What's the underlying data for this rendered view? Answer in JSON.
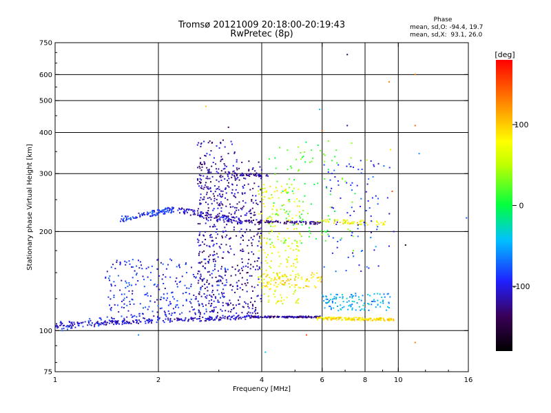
{
  "chart_data": {
    "type": "scatter",
    "title": "Tromsø 20121009 20:18:00-20:19:43",
    "subtitle": "RwPretec (8p)",
    "xlabel": "Frequency [MHz]",
    "ylabel": "Stationary phase Virtual Height [km]",
    "x_scale": "log",
    "y_scale": "log",
    "xlim": [
      1,
      16
    ],
    "ylim": [
      75,
      750
    ],
    "x_ticks": [
      1,
      2,
      4,
      6,
      8,
      10,
      16
    ],
    "x_tick_labels": [
      "1",
      "2",
      "4",
      "6",
      "8",
      "10",
      "16"
    ],
    "y_ticks": [
      75,
      100,
      200,
      300,
      400,
      500,
      600,
      750
    ],
    "y_tick_labels": [
      "75",
      "100",
      "200",
      "300",
      "400",
      "500",
      "600",
      "750"
    ],
    "grid": true,
    "colorbar": {
      "label": "[deg]",
      "range": [
        -180,
        180
      ],
      "ticks": [
        -100,
        0,
        100
      ],
      "tick_labels": [
        "-100",
        "0",
        "100"
      ]
    },
    "stats": {
      "heading": "Phase",
      "line_o": "mean, sd,O: -94.4, 19.7",
      "line_x": "mean, sd,X:  93.1, 26.0"
    },
    "traces": [
      {
        "kind": "line",
        "f0": 1.0,
        "f1": 3.7,
        "h0": 104,
        "h1": 110,
        "n": 230,
        "phase": -110,
        "spread": 0.015
      },
      {
        "kind": "line",
        "f0": 3.7,
        "f1": 6.0,
        "h0": 110,
        "h1": 110,
        "n": 120,
        "phase": -120,
        "spread": 0.006
      },
      {
        "kind": "line",
        "f0": 5.8,
        "f1": 9.7,
        "h0": 109,
        "h1": 108,
        "n": 160,
        "phase": 90,
        "spread": 0.01
      },
      {
        "kind": "line",
        "f0": 1.0,
        "f1": 2.2,
        "h0": 103,
        "h1": 112,
        "n": 90,
        "phase": -95,
        "spread": 0.03
      },
      {
        "kind": "line",
        "f0": 1.55,
        "f1": 2.3,
        "h0": 218,
        "h1": 235,
        "n": 110,
        "phase": -90,
        "spread": 0.02
      },
      {
        "kind": "line",
        "f0": 2.3,
        "f1": 3.5,
        "h0": 232,
        "h1": 215,
        "n": 110,
        "phase": -110,
        "spread": 0.02
      },
      {
        "kind": "line",
        "f0": 3.4,
        "f1": 6.0,
        "h0": 215,
        "h1": 212,
        "n": 90,
        "phase": -125,
        "spread": 0.01
      },
      {
        "kind": "line",
        "f0": 5.8,
        "f1": 9.2,
        "h0": 215,
        "h1": 212,
        "n": 60,
        "phase": 80,
        "spread": 0.015
      },
      {
        "kind": "line",
        "f0": 3.2,
        "f1": 4.2,
        "h0": 300,
        "h1": 295,
        "n": 40,
        "phase": -120,
        "spread": 0.01
      },
      {
        "kind": "cloud",
        "f0": 1.4,
        "f1": 3.2,
        "h0": 112,
        "h1": 165,
        "n": 260,
        "phase": -95
      },
      {
        "kind": "cloud",
        "f0": 2.6,
        "f1": 4.0,
        "h0": 110,
        "h1": 330,
        "n": 520,
        "phase": -120
      },
      {
        "kind": "cloud",
        "f0": 2.6,
        "f1": 3.4,
        "h0": 230,
        "h1": 380,
        "n": 120,
        "phase": -115
      },
      {
        "kind": "cloud",
        "f0": 3.9,
        "f1": 5.2,
        "h0": 120,
        "h1": 280,
        "n": 200,
        "phase": 70
      },
      {
        "kind": "cloud",
        "f0": 4.0,
        "f1": 6.0,
        "h0": 135,
        "h1": 150,
        "n": 80,
        "phase": 90
      },
      {
        "kind": "cloud",
        "f0": 4.2,
        "f1": 7.5,
        "h0": 180,
        "h1": 380,
        "n": 120,
        "phase": 20
      },
      {
        "kind": "cloud",
        "f0": 6.0,
        "f1": 9.5,
        "h0": 115,
        "h1": 130,
        "n": 110,
        "phase": -50
      },
      {
        "kind": "cloud",
        "f0": 6.0,
        "f1": 9.5,
        "h0": 150,
        "h1": 330,
        "n": 90,
        "phase": -90
      }
    ],
    "outliers": [
      {
        "f": 1.05,
        "h": 100,
        "phase": -70
      },
      {
        "f": 1.75,
        "h": 97,
        "phase": -60
      },
      {
        "f": 2.75,
        "h": 480,
        "phase": 100
      },
      {
        "f": 3.2,
        "h": 415,
        "phase": -140
      },
      {
        "f": 5.9,
        "h": 470,
        "phase": -40
      },
      {
        "f": 6.0,
        "h": 405,
        "phase": 140
      },
      {
        "f": 7.1,
        "h": 690,
        "phase": -150
      },
      {
        "f": 7.1,
        "h": 420,
        "phase": -120
      },
      {
        "f": 9.4,
        "h": 570,
        "phase": 130
      },
      {
        "f": 9.5,
        "h": 355,
        "phase": 90
      },
      {
        "f": 9.7,
        "h": 200,
        "phase": -100
      },
      {
        "f": 10.5,
        "h": 182,
        "phase": -160
      },
      {
        "f": 11.2,
        "h": 600,
        "phase": 130
      },
      {
        "f": 11.2,
        "h": 420,
        "phase": 140
      },
      {
        "f": 11.5,
        "h": 345,
        "phase": -60
      },
      {
        "f": 11.2,
        "h": 92,
        "phase": 130
      },
      {
        "f": 9.6,
        "h": 265,
        "phase": 150
      },
      {
        "f": 15.8,
        "h": 220,
        "phase": -80
      },
      {
        "f": 5.4,
        "h": 97,
        "phase": 150
      },
      {
        "f": 4.1,
        "h": 86,
        "phase": -40
      },
      {
        "f": 8.6,
        "h": 180,
        "phase": -50
      },
      {
        "f": 7.4,
        "h": 175,
        "phase": 30
      },
      {
        "f": 8.1,
        "h": 330,
        "phase": 50
      }
    ]
  }
}
